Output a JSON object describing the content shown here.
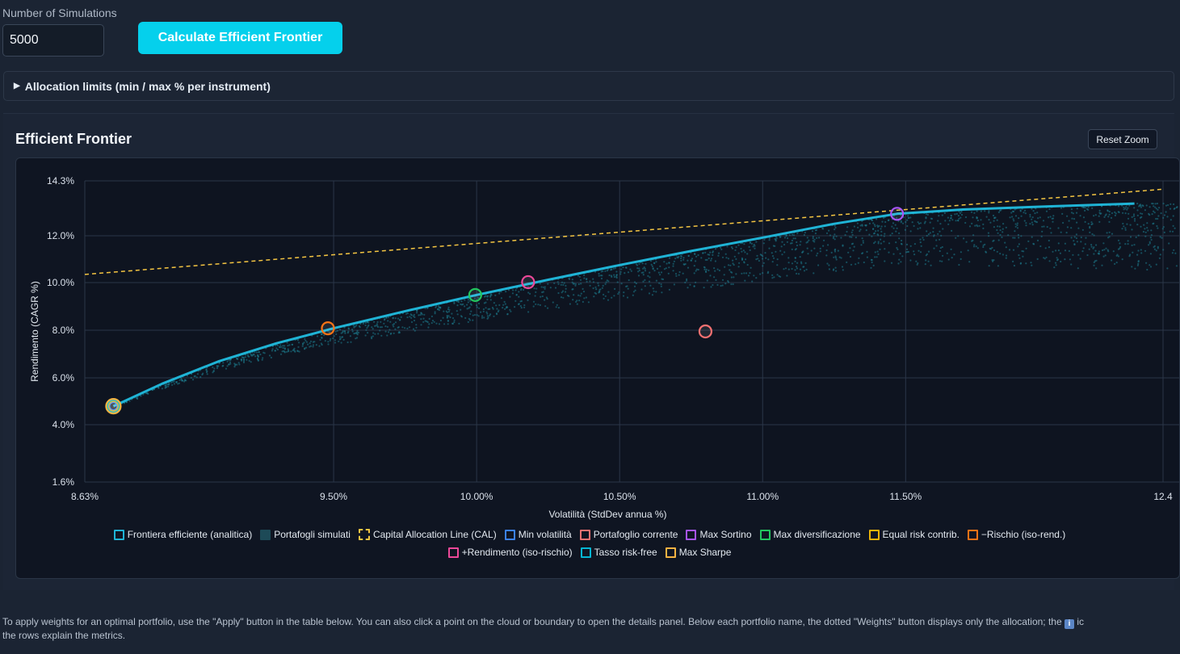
{
  "controls": {
    "simulations_label": "Number of Simulations",
    "simulations_value": "5000",
    "calculate_button": "Calculate Efficient Frontier"
  },
  "allocation": {
    "summary": "Allocation limits (min / max % per instrument)"
  },
  "frontier_section": {
    "title": "Efficient Frontier",
    "reset_zoom": "Reset Zoom"
  },
  "chart_data": {
    "type": "scatter",
    "title": "",
    "xlabel": "Volatilità (StdDev annua %)",
    "ylabel": "Rendimento (CAGR %)",
    "xlim": [
      8.63,
      12.4
    ],
    "ylim": [
      1.6,
      14.3
    ],
    "x_ticks": [
      {
        "value": 8.63,
        "label": "8.63%"
      },
      {
        "value": 9.5,
        "label": "9.50%"
      },
      {
        "value": 10.0,
        "label": "10.00%"
      },
      {
        "value": 10.5,
        "label": "10.50%"
      },
      {
        "value": 11.0,
        "label": "11.00%"
      },
      {
        "value": 11.5,
        "label": "11.50%"
      },
      {
        "value": 12.4,
        "label": "12.4"
      }
    ],
    "y_ticks": [
      {
        "value": 1.6,
        "label": "1.6%"
      },
      {
        "value": 4.0,
        "label": "4.0%"
      },
      {
        "value": 6.0,
        "label": "6.0%"
      },
      {
        "value": 8.0,
        "label": "8.0%"
      },
      {
        "value": 10.0,
        "label": "10.0%"
      },
      {
        "value": 12.0,
        "label": "12.0%"
      },
      {
        "value": 14.3,
        "label": "14.3%"
      }
    ],
    "grid": true,
    "legend_position": "bottom-center",
    "series": [
      {
        "name": "Frontiera efficiente (analitica)",
        "kind": "line",
        "color": "#1fb4d6",
        "points": [
          [
            8.73,
            4.79
          ],
          [
            8.9,
            5.75
          ],
          [
            9.1,
            6.7
          ],
          [
            9.3,
            7.45
          ],
          [
            9.5,
            8.08
          ],
          [
            9.75,
            8.8
          ],
          [
            10.0,
            9.48
          ],
          [
            10.25,
            10.12
          ],
          [
            10.5,
            10.75
          ],
          [
            10.75,
            11.35
          ],
          [
            11.0,
            11.92
          ],
          [
            11.25,
            12.5
          ],
          [
            11.47,
            12.92
          ],
          [
            11.7,
            13.1
          ],
          [
            12.0,
            13.23
          ],
          [
            12.3,
            13.35
          ]
        ]
      },
      {
        "name": "Portafogli simulati",
        "kind": "scatter-cloud",
        "color": "#1e7f92",
        "count": 5000
      },
      {
        "name": "Capital Allocation Line (CAL)",
        "kind": "dashed-line",
        "color": "#f4c542",
        "points": [
          [
            8.63,
            10.35
          ],
          [
            12.4,
            13.95
          ]
        ]
      },
      {
        "name": "Min volatilità",
        "kind": "marker",
        "color": "#3b82f6",
        "x": 8.73,
        "y": 4.79
      },
      {
        "name": "Portafoglio corrente",
        "kind": "marker",
        "color": "#f87171",
        "x": 10.8,
        "y": 7.95
      },
      {
        "name": "Max Sortino",
        "kind": "marker",
        "color": "#a855f7",
        "x": 11.47,
        "y": 12.92
      },
      {
        "name": "Max diversificazione",
        "kind": "marker",
        "color": "#22c55e",
        "x": 9.995,
        "y": 9.48
      },
      {
        "name": "Equal risk contrib.",
        "kind": "marker",
        "color": "#eab308",
        "x": 8.73,
        "y": 4.79
      },
      {
        "name": "−Rischio (iso-rend.)",
        "kind": "marker",
        "color": "#f97316",
        "x": 9.48,
        "y": 8.08
      },
      {
        "name": "+Rendimento (iso-rischio)",
        "kind": "marker",
        "color": "#ec4899",
        "x": 10.18,
        "y": 10.02
      },
      {
        "name": "Tasso risk-free",
        "kind": "marker",
        "color": "#06b6d4",
        "x": 8.73,
        "y": 4.79
      },
      {
        "name": "Max Sharpe",
        "kind": "marker",
        "color": "#f5b342",
        "x": 8.73,
        "y": 4.79
      }
    ]
  },
  "legend": [
    {
      "label": "Frontiera efficiente (analitica)",
      "color": "#1fb4d6",
      "style": "solid"
    },
    {
      "label": "Portafogli simulati",
      "color": "#1d4a57",
      "style": "fill"
    },
    {
      "label": "Capital Allocation Line (CAL)",
      "color": "#f4c542",
      "style": "dashed"
    },
    {
      "label": "Min volatilità",
      "color": "#3b82f6",
      "style": "solid"
    },
    {
      "label": "Portafoglio corrente",
      "color": "#f87171",
      "style": "solid"
    },
    {
      "label": "Max Sortino",
      "color": "#a855f7",
      "style": "solid"
    },
    {
      "label": "Max diversificazione",
      "color": "#22c55e",
      "style": "solid"
    },
    {
      "label": "Equal risk contrib.",
      "color": "#eab308",
      "style": "solid"
    },
    {
      "label": "−Rischio (iso-rend.)",
      "color": "#f97316",
      "style": "solid"
    },
    {
      "label": "+Rendimento (iso-rischio)",
      "color": "#ec4899",
      "style": "solid"
    },
    {
      "label": "Tasso risk-free",
      "color": "#06b6d4",
      "style": "solid"
    },
    {
      "label": "Max Sharpe",
      "color": "#f5b342",
      "style": "solid"
    }
  ],
  "footer": {
    "line1": "To apply weights for an optimal portfolio, use the \"Apply\" button in the table below. You can also click a point on the cloud or boundary to open the details panel. Below each portfolio name, the dotted \"Weights\" button displays only the allocation; the",
    "icon": "i",
    "line1_tail": "ic",
    "line2": "the rows explain the metrics."
  }
}
